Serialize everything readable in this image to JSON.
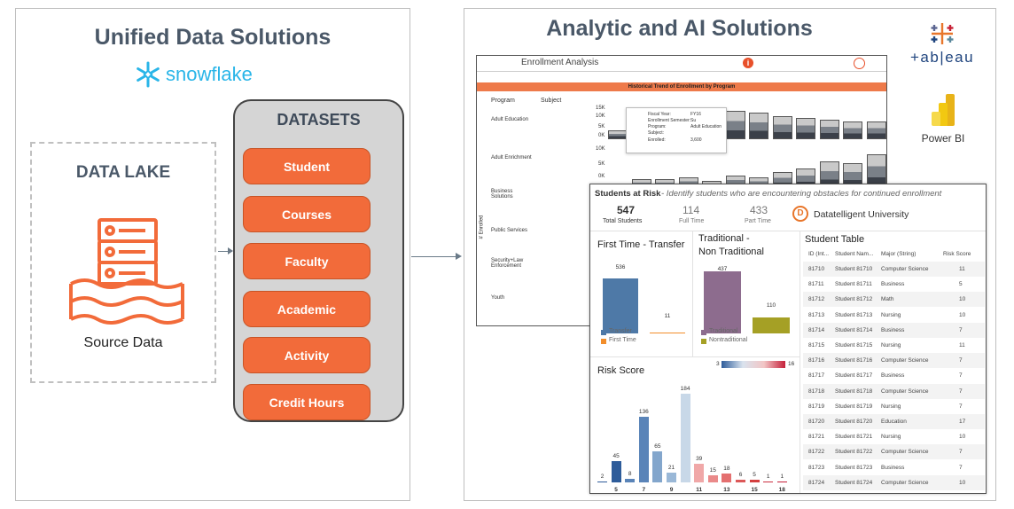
{
  "left_panel": {
    "title": "Unified Data Solutions",
    "brand": "snowflake",
    "data_lake": {
      "title": "DATA LAKE",
      "caption": "Source Data"
    },
    "datasets": {
      "title": "DATASETS",
      "items": [
        "Student",
        "Courses",
        "Faculty",
        "Academic",
        "Activity",
        "Credit Hours"
      ]
    }
  },
  "right_panel": {
    "title": "Analytic and AI Solutions",
    "tableau": "+ab|eau",
    "powerbi": "Power BI",
    "enrollment_dashboard": {
      "title": "Enrollment Analysis",
      "band": "Historical Trend of Enrollment by Program",
      "col_program": "Program",
      "col_subject": "Subject",
      "y_axis": "# Enrolled",
      "programs": [
        "Adult Education",
        "Adult Enrichment",
        "Business Solutions",
        "Public Services",
        "Security+Law Enforcement",
        "Youth"
      ],
      "ticks": [
        "15K",
        "10K",
        "5K",
        "0K",
        "10K",
        "5K",
        "0K"
      ],
      "tooltip": {
        "fiscal_year_label": "Fiscal Year:",
        "fiscal_year": "FY16",
        "semester_label": "Enrollment Semester:",
        "semester": "Su",
        "program_label": "Program:",
        "program": "Adult Education",
        "subject_label": "Subject:",
        "subject": "",
        "enrolled_label": "Enrolled:",
        "enrolled": "3,600"
      }
    },
    "risk_dashboard": {
      "title": "Students at Risk",
      "subtitle": "- Identify students who are encountering obstacles for continued enrollment",
      "kpis": [
        {
          "value": "547",
          "label": "Total Students"
        },
        {
          "value": "114",
          "label": "Full Time"
        },
        {
          "value": "433",
          "label": "Part Time"
        }
      ],
      "university": "Datatelligent University",
      "first_time_transfer": {
        "title": "First Time - Transfer",
        "legend": [
          "Transfer",
          "First Time"
        ],
        "values": [
          536,
          11
        ]
      },
      "traditional": {
        "title_line1": "Traditional -",
        "title_line2": "Non Traditional",
        "legend": [
          "Traditional",
          "Nontraditional"
        ],
        "values": [
          437,
          110
        ]
      },
      "risk_score": {
        "title": "Risk Score",
        "scale_min": "3",
        "scale_max": "16",
        "bars": [
          2,
          45,
          8,
          136,
          65,
          21,
          184,
          39,
          15,
          18,
          6,
          5,
          1,
          1
        ],
        "x_ticks": [
          "5",
          "7",
          "9",
          "11",
          "13",
          "15",
          "18"
        ]
      },
      "student_table": {
        "title": "Student Table",
        "headers": [
          "ID (Int...",
          "Student Nam...",
          "Major (String)",
          "Risk Score"
        ],
        "rows": [
          [
            "81710",
            "Student 81710",
            "Computer Science",
            "11"
          ],
          [
            "81711",
            "Student 81711",
            "Business",
            "5"
          ],
          [
            "81712",
            "Student 81712",
            "Math",
            "10"
          ],
          [
            "81713",
            "Student 81713",
            "Nursing",
            "10"
          ],
          [
            "81714",
            "Student 81714",
            "Business",
            "7"
          ],
          [
            "81715",
            "Student 81715",
            "Nursing",
            "11"
          ],
          [
            "81716",
            "Student 81716",
            "Computer Science",
            "7"
          ],
          [
            "81717",
            "Student 81717",
            "Business",
            "7"
          ],
          [
            "81718",
            "Student 81718",
            "Computer Science",
            "7"
          ],
          [
            "81719",
            "Student 81719",
            "Nursing",
            "7"
          ],
          [
            "81720",
            "Student 81720",
            "Education",
            "17"
          ],
          [
            "81721",
            "Student 81721",
            "Nursing",
            "10"
          ],
          [
            "81722",
            "Student 81722",
            "Computer Science",
            "7"
          ],
          [
            "81723",
            "Student 81723",
            "Business",
            "7"
          ],
          [
            "81724",
            "Student 81724",
            "Computer Science",
            "10"
          ]
        ]
      }
    }
  }
}
